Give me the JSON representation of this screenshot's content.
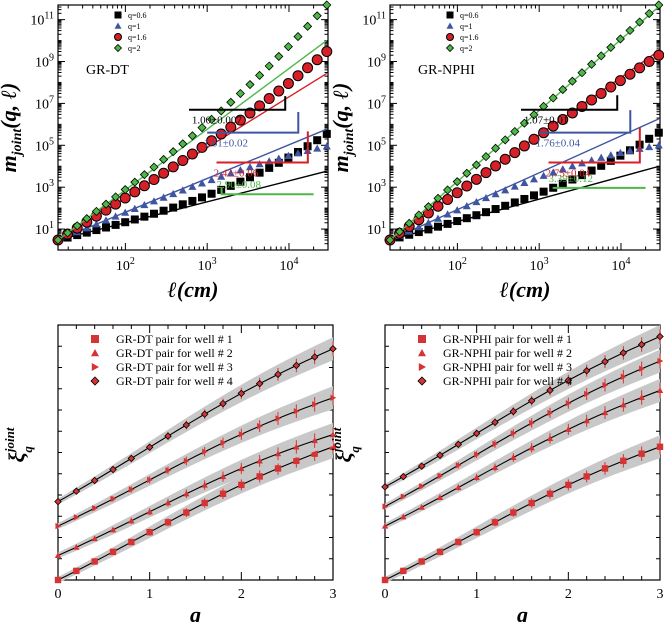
{
  "colors": {
    "q0.6": "#000000",
    "q1": "#3f55a2",
    "q1.6": "#d62027",
    "q2": "#4db848",
    "well_marker": "#d43434",
    "band": "#c8c8c8"
  },
  "chart_data": [
    {
      "type": "scatter",
      "panel": "top-left",
      "tag": "GR-DT",
      "xlabel": "ℓ(cm)",
      "ylabel": "m_joint(q, ℓ)",
      "xscale": "log",
      "yscale": "log",
      "xlim": [
        15,
        30000
      ],
      "ylim": [
        1,
        500000000000
      ],
      "x_ticks": [
        {
          "value": 100,
          "base": "10",
          "exp": "2"
        },
        {
          "value": 1000,
          "base": "10",
          "exp": "3"
        },
        {
          "value": 10000,
          "base": "10",
          "exp": "4"
        }
      ],
      "y_ticks": [
        {
          "value": 10,
          "base": "10",
          "exp": "1"
        },
        {
          "value": 1000,
          "base": "10",
          "exp": "3"
        },
        {
          "value": 100000,
          "base": "10",
          "exp": "5"
        },
        {
          "value": 10000000,
          "base": "10",
          "exp": "7"
        },
        {
          "value": 1000000000,
          "base": "10",
          "exp": "9"
        },
        {
          "value": 100000000000,
          "base": "10",
          "exp": "11"
        }
      ],
      "legend_position": "top-left",
      "series": [
        {
          "name": "q=0.6",
          "color_key": "q0.6",
          "marker": "square",
          "slope": 1.0,
          "x": [
            15,
            29000
          ],
          "y": [
            3,
            350000
          ],
          "slope_label": "1.00±0.007",
          "triangle": [
            [
              1500,
              16000
            ],
            [
              4000,
              4000,
              16000
            ],
            1.0
          ]
        },
        {
          "name": "q=1",
          "color_key": "q1",
          "marker": "triangle",
          "slope": 1.61,
          "x": [
            15,
            29000
          ],
          "y": [
            3,
            90000
          ],
          "slope_label": "1.61±0.02",
          "triangle": [
            [
              1300,
              15000
            ],
            [
              10000,
              10000,
              15000
            ],
            1.61
          ]
        },
        {
          "name": "q=1.6",
          "color_key": "q1.6",
          "marker": "circle",
          "slope": 2.42,
          "x": [
            15,
            29000
          ],
          "y": [
            3,
            3000000000
          ],
          "slope_label": "2.42±0.06",
          "triangle": [
            [
              1100,
              12000
            ],
            [
              400000,
              400000,
              12000
            ],
            2.42
          ]
        },
        {
          "name": "q=2",
          "color_key": "q2",
          "marker": "diamond",
          "slope": 2.9,
          "x": [
            15,
            29000
          ],
          "y": [
            3,
            500000000000
          ],
          "slope_label": "2.90±0.08",
          "triangle": [
            [
              600,
              9000
            ],
            [
              20000000,
              20000000,
              9000
            ],
            2.9
          ]
        }
      ]
    },
    {
      "type": "scatter",
      "panel": "top-right",
      "tag": "GR-NPHI",
      "xlabel": "ℓ(cm)",
      "ylabel": "m_joint(q, ℓ)",
      "xscale": "log",
      "yscale": "log",
      "xlim": [
        15,
        30000
      ],
      "ylim": [
        1,
        500000000000
      ],
      "x_ticks": [
        {
          "value": 100,
          "base": "10",
          "exp": "2"
        },
        {
          "value": 1000,
          "base": "10",
          "exp": "3"
        },
        {
          "value": 10000,
          "base": "10",
          "exp": "4"
        }
      ],
      "y_ticks": [
        {
          "value": 10,
          "base": "10",
          "exp": "1"
        },
        {
          "value": 1000,
          "base": "10",
          "exp": "3"
        },
        {
          "value": 100000,
          "base": "10",
          "exp": "5"
        },
        {
          "value": 10000000,
          "base": "10",
          "exp": "7"
        },
        {
          "value": 1000000000,
          "base": "10",
          "exp": "9"
        },
        {
          "value": 100000000000,
          "base": "10",
          "exp": "11"
        }
      ],
      "legend_position": "top-left",
      "series": [
        {
          "name": "q=0.6",
          "color_key": "q0.6",
          "marker": "square",
          "slope": 1.07,
          "x": [
            15,
            29000
          ],
          "y": [
            3,
            400000
          ],
          "slope_label": "1.07±0.01"
        },
        {
          "name": "q=1",
          "color_key": "q1",
          "marker": "triangle",
          "slope": 1.76,
          "x": [
            15,
            29000
          ],
          "y": [
            3,
            100000
          ],
          "slope_label": "1.76±0.04"
        },
        {
          "name": "q=1.6",
          "color_key": "q1.6",
          "marker": "circle",
          "slope": 2.75,
          "x": [
            15,
            29000
          ],
          "y": [
            3,
            2000000000
          ],
          "slope_label": "2.75±0.04"
        },
        {
          "name": "q=2",
          "color_key": "q2",
          "marker": "diamond",
          "slope": 3.39,
          "x": [
            15,
            29000
          ],
          "y": [
            3,
            500000000000
          ],
          "slope_label": "3.39±0.12"
        }
      ]
    },
    {
      "type": "scatter",
      "panel": "bottom-left",
      "xlabel": "q",
      "ylabel": "ξ_q^joint",
      "xlim": [
        0,
        3
      ],
      "x_ticks": [
        0,
        1,
        2,
        3
      ],
      "legend_position": "top-left",
      "series": [
        {
          "name": "GR-DT pair for well # 1",
          "marker": "square",
          "x0": 0,
          "y0": 0.0,
          "y3": 0.55
        },
        {
          "name": "GR-DT pair for well # 2",
          "marker": "triangle",
          "x0": 0,
          "y0": 0.1,
          "y3": 0.6
        },
        {
          "name": "GR-DT pair for well # 3",
          "marker": "triangle-right",
          "x0": 0,
          "y0": 0.22,
          "y3": 0.75
        },
        {
          "name": "GR-DT pair for well # 4",
          "marker": "diamond",
          "x0": 0,
          "y0": 0.32,
          "y3": 0.95
        }
      ]
    },
    {
      "type": "scatter",
      "panel": "bottom-right",
      "xlabel": "q",
      "ylabel": "ξ_q^joint",
      "xlim": [
        0,
        3
      ],
      "x_ticks": [
        0,
        1,
        2,
        3
      ],
      "legend_position": "top-left",
      "series": [
        {
          "name": "GR-NPHI pair for well # 1",
          "marker": "square",
          "x0": 0,
          "y0": 0.0,
          "y3": 0.55
        },
        {
          "name": "GR-NPHI pair for well # 2",
          "marker": "triangle",
          "x0": 0,
          "y0": 0.22,
          "y3": 0.78
        },
        {
          "name": "GR-NPHI pair for well # 3",
          "marker": "triangle-right",
          "x0": 0,
          "y0": 0.3,
          "y3": 0.9
        },
        {
          "name": "GR-NPHI pair for well # 4",
          "marker": "diamond",
          "x0": 0,
          "y0": 0.38,
          "y3": 1.0
        }
      ]
    }
  ]
}
